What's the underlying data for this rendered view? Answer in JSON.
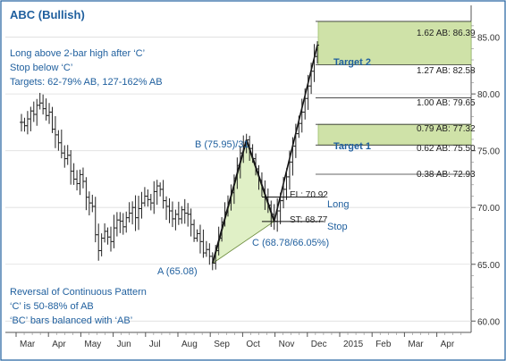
{
  "chart_data": {
    "type": "line",
    "title": "ABC (Bullish)",
    "notes_top": [
      "Long above 2-bar high after ‘C’",
      "Stop below ‘C’",
      "Targets: 62-79% AB, 127-162% AB"
    ],
    "notes_bottom": [
      "Reversal of Continuous Pattern",
      "‘C’ is 50-88% of AB",
      "‘BC’ bars balanced with ‘AB’"
    ],
    "x_labels": [
      "Mar",
      "Apr",
      "May",
      "Jun",
      "Jul",
      "Aug",
      "Sep",
      "Oct",
      "Nov",
      "Dec",
      "2015",
      "Feb",
      "Mar",
      "Apr"
    ],
    "y_ticks": [
      "85.00",
      "80.00",
      "75.00",
      "70.00",
      "65.00",
      "60.00"
    ],
    "y_tick_values": [
      85,
      80,
      75,
      70,
      65,
      60
    ],
    "ylim": [
      59,
      87.8
    ],
    "points": {
      "A": {
        "label": "A (65.08)",
        "value": 65.08
      },
      "B": {
        "label": "B (75.95)/31",
        "value": 75.95
      },
      "C": {
        "label": "C (68.78/66.05%)",
        "value": 68.78
      }
    },
    "fib_levels": [
      {
        "label": "1.62 AB: 86.39",
        "value": 86.39
      },
      {
        "label": "1.27 AB: 82.58",
        "value": 82.58
      },
      {
        "label": "1.00 AB: 79.65",
        "value": 79.65
      },
      {
        "label": "0.79 AB: 77.32",
        "value": 77.32
      },
      {
        "label": "0.62 AB: 75.50",
        "value": 75.5
      },
      {
        "label": "0.38 AB: 72.93",
        "value": 72.93
      }
    ],
    "entry": {
      "label": "EL: 70.92",
      "tag": "Long",
      "value": 70.92
    },
    "stop": {
      "label": "ST: 68.77",
      "tag": "Stop",
      "value": 68.77
    },
    "targets": [
      {
        "label": "Target 1",
        "from": 75.5,
        "to": 77.32
      },
      {
        "label": "Target 2",
        "from": 82.58,
        "to": 86.39
      }
    ],
    "price_series": [
      77.5,
      77.2,
      77.8,
      78.5,
      78.2,
      79.0,
      79.2,
      78.7,
      78.1,
      78.4,
      76.9,
      76.4,
      75.7,
      74.8,
      74.3,
      74.6,
      73.2,
      72.5,
      72.1,
      72.9,
      72.3,
      70.9,
      70.4,
      70.1,
      67.6,
      66.2,
      67.3,
      67.9,
      67.4,
      67.0,
      68.2,
      68.9,
      68.8,
      68.3,
      69.1,
      69.5,
      70.0,
      69.1,
      69.9,
      70.4,
      71.0,
      70.7,
      70.4,
      71.4,
      71.9,
      71.6,
      70.6,
      70.1,
      69.7,
      69.0,
      69.4,
      69.0,
      69.8,
      69.5,
      69.4,
      68.5,
      67.3,
      67.7,
      67.0,
      66.0,
      66.3,
      65.7,
      65.1,
      66.2,
      67.3,
      68.7,
      69.6,
      70.4,
      71.3,
      72.6,
      73.7,
      74.8,
      75.4,
      75.95,
      75.2,
      74.3,
      73.4,
      72.4,
      71.6,
      70.9,
      70.2,
      69.4,
      68.78,
      69.7,
      70.6,
      71.6,
      72.7,
      74.0,
      75.4,
      76.5,
      77.4,
      78.4,
      79.6,
      80.7,
      82.0,
      83.3,
      84.3
    ]
  }
}
